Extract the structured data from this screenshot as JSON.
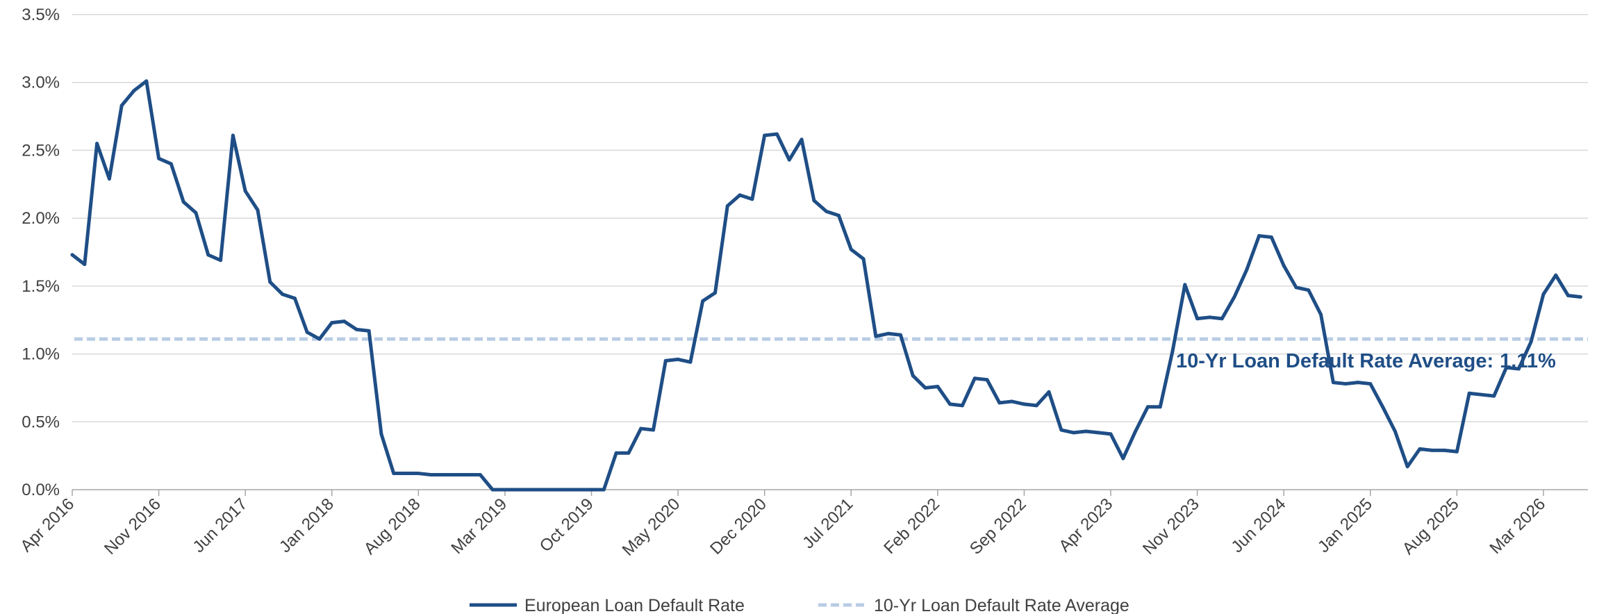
{
  "chart_data": {
    "type": "line",
    "x_start": "2016-04",
    "x_frequency": "monthly",
    "x_tick_labels": [
      "Apr 2016",
      "Nov 2016",
      "Jun 2017",
      "Jan 2018",
      "Aug 2018",
      "Mar 2019",
      "Oct 2019",
      "May 2020",
      "Dec 2020",
      "Jul 2021",
      "Feb 2022",
      "Sep 2022",
      "Apr 2023",
      "Nov 2023",
      "Jun 2024",
      "Jan 2025",
      "Aug 2025",
      "Mar 2026"
    ],
    "y_tick_labels": [
      "0.0%",
      "0.5%",
      "1.0%",
      "1.5%",
      "2.0%",
      "2.5%",
      "3.0%",
      "3.5%"
    ],
    "ylim": [
      0,
      3.5
    ],
    "y_unit": "%",
    "grid": "horizontal",
    "legend_position": "bottom-center",
    "series": [
      {
        "name": "European Loan Default Rate",
        "color": "#1f4e86",
        "style": "solid",
        "values": [
          1.73,
          1.66,
          2.55,
          2.29,
          2.83,
          2.94,
          3.01,
          2.44,
          2.4,
          2.12,
          2.04,
          1.73,
          1.69,
          2.61,
          2.2,
          2.06,
          1.53,
          1.44,
          1.41,
          1.16,
          1.11,
          1.23,
          1.24,
          1.18,
          1.17,
          0.41,
          0.12,
          0.12,
          0.12,
          0.11,
          0.11,
          0.11,
          0.11,
          0.11,
          0.0,
          0.0,
          0.0,
          0.0,
          0.0,
          0.0,
          0.0,
          0.0,
          0.0,
          0.0,
          0.27,
          0.27,
          0.45,
          0.44,
          0.95,
          0.96,
          0.94,
          1.39,
          1.45,
          2.09,
          2.17,
          2.14,
          2.61,
          2.62,
          2.43,
          2.58,
          2.13,
          2.05,
          2.02,
          1.77,
          1.7,
          1.13,
          1.15,
          1.14,
          0.84,
          0.75,
          0.76,
          0.63,
          0.62,
          0.82,
          0.81,
          0.64,
          0.65,
          0.63,
          0.62,
          0.72,
          0.44,
          0.42,
          0.43,
          0.42,
          0.41,
          0.23,
          0.43,
          0.61,
          0.61,
          1.02,
          1.51,
          1.26,
          1.27,
          1.26,
          1.42,
          1.62,
          1.87,
          1.86,
          1.65,
          1.49,
          1.47,
          1.29,
          0.79,
          0.78,
          0.79,
          0.78,
          0.61,
          0.43,
          0.17,
          0.3,
          0.29,
          0.29,
          0.28,
          0.71,
          0.7,
          0.69,
          0.9,
          0.89,
          1.09,
          1.44,
          1.58,
          1.43,
          1.42
        ]
      },
      {
        "name": "10-Yr Loan Default Rate Average",
        "color": "#b8cce4",
        "style": "dashed",
        "constant": 1.11
      }
    ],
    "annotation": {
      "label": "10-Yr Loan Default Rate Average:",
      "value": "1.11%"
    }
  }
}
